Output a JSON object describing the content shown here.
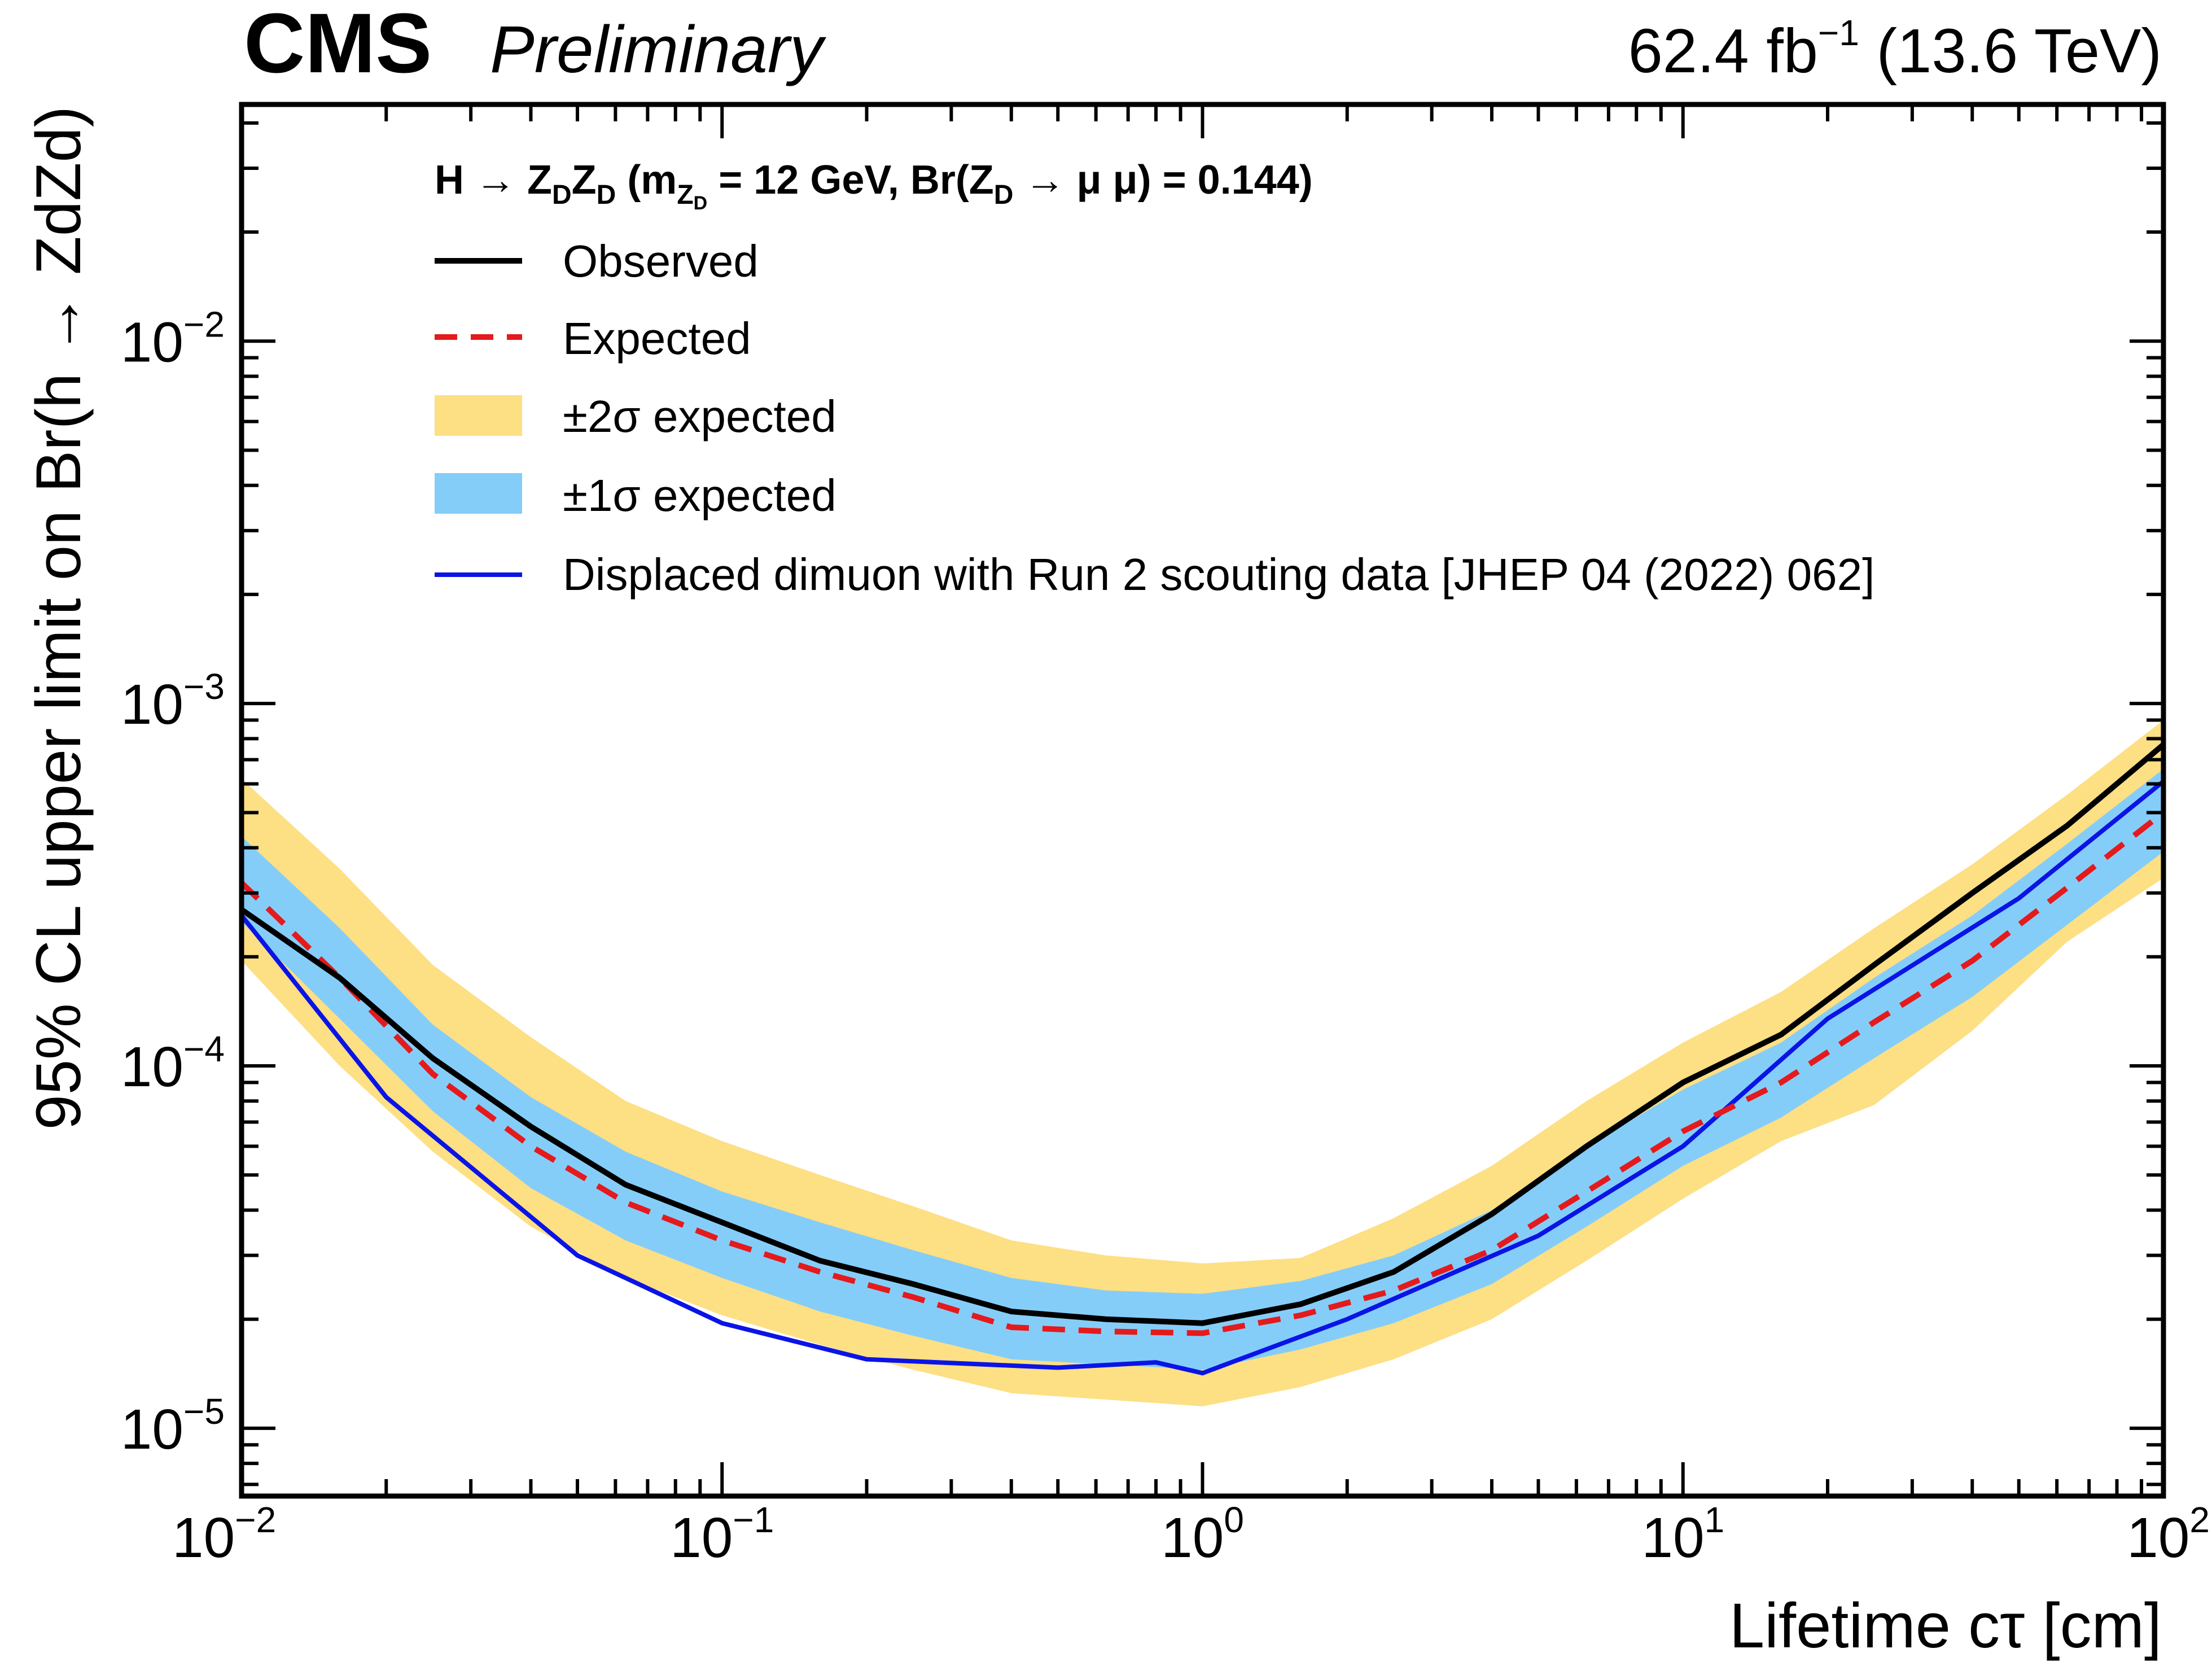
{
  "header": {
    "experiment": "CMS",
    "status": "Preliminary",
    "lumi_value": "62.4 fb",
    "lumi_exp": "−1",
    "energy": "(13.6 TeV)"
  },
  "colors": {
    "observed": "#000000",
    "expected": "#e41a1c",
    "band_2sigma": "#fddf84",
    "band_1sigma": "#85cdf9",
    "run2": "#0a14e6"
  },
  "legend": {
    "title_main": "H → Z",
    "title_sub1": "D",
    "title_mid1": "Z",
    "title_sub2": "D",
    "title_mid2": " (m",
    "title_sub3": "Z",
    "title_subsub": "D",
    "title_mid3": " =  12 GeV, Br(Z",
    "title_sub4": "D",
    "title_end": " → μ μ) = 0.144)",
    "observed": "Observed",
    "expected": "Expected",
    "band2": "±2σ expected",
    "band1": "±1σ expected",
    "run2": "Displaced dimuon with Run 2 scouting data [JHEP 04 (2022) 062]"
  },
  "chart_data": {
    "type": "line",
    "title": "H → ZDZD (mZD = 12 GeV, Br(ZD → μμ) = 0.144)",
    "xlabel": "Lifetime cτ [cm]",
    "ylabel": "95% CL upper limit on Br(h → ZdZd)",
    "xscale": "log",
    "yscale": "log",
    "xlim": [
      0.01,
      100
    ],
    "ylim": [
      6.5e-06,
      0.045
    ],
    "xticks": [
      {
        "base": "10",
        "exp": "−2",
        "value": 0.01
      },
      {
        "base": "10",
        "exp": "−1",
        "value": 0.1
      },
      {
        "base": "10",
        "exp": "0",
        "value": 1
      },
      {
        "base": "10",
        "exp": "1",
        "value": 10
      },
      {
        "base": "10",
        "exp": "2",
        "value": 100
      }
    ],
    "yticks": [
      {
        "base": "10",
        "exp": "−5",
        "value": 1e-05
      },
      {
        "base": "10",
        "exp": "−4",
        "value": 0.0001
      },
      {
        "base": "10",
        "exp": "−3",
        "value": 0.001
      },
      {
        "base": "10",
        "exp": "−2",
        "value": 0.01
      }
    ],
    "x": [
      0.01,
      0.016,
      0.025,
      0.04,
      0.063,
      0.1,
      0.16,
      0.25,
      0.4,
      0.63,
      1.0,
      1.6,
      2.5,
      4.0,
      6.3,
      10,
      16,
      25,
      40,
      63,
      100
    ],
    "series": [
      {
        "name": "Observed",
        "values": [
          0.00027,
          0.000175,
          0.000105,
          6.8e-05,
          4.7e-05,
          3.7e-05,
          2.9e-05,
          2.5e-05,
          2.1e-05,
          2e-05,
          1.95e-05,
          2.2e-05,
          2.7e-05,
          3.9e-05,
          6e-05,
          9e-05,
          0.000122,
          0.00019,
          0.0003,
          0.00046,
          0.00077
        ]
      },
      {
        "name": "Expected",
        "values": [
          0.00032,
          0.000175,
          9.5e-05,
          6e-05,
          4.2e-05,
          3.3e-05,
          2.7e-05,
          2.3e-05,
          1.9e-05,
          1.85e-05,
          1.83e-05,
          2.05e-05,
          2.4e-05,
          3.1e-05,
          4.5e-05,
          6.6e-05,
          9e-05,
          0.000132,
          0.000195,
          0.00031,
          0.0005
        ]
      },
      {
        "name": "+1σ",
        "values": [
          0.00043,
          0.00024,
          0.00013,
          8.2e-05,
          5.8e-05,
          4.5e-05,
          3.7e-05,
          3.1e-05,
          2.6e-05,
          2.4e-05,
          2.35e-05,
          2.55e-05,
          3e-05,
          4e-05,
          6e-05,
          8.6e-05,
          0.000116,
          0.000175,
          0.00026,
          0.00041,
          0.00066
        ]
      },
      {
        "name": "-1σ",
        "values": [
          0.00025,
          0.000135,
          7.5e-05,
          4.6e-05,
          3.3e-05,
          2.6e-05,
          2.1e-05,
          1.8e-05,
          1.55e-05,
          1.5e-05,
          1.45e-05,
          1.65e-05,
          1.95e-05,
          2.5e-05,
          3.6e-05,
          5.3e-05,
          7.2e-05,
          0.000105,
          0.000155,
          0.000245,
          0.00039
        ]
      },
      {
        "name": "+2σ",
        "values": [
          0.00062,
          0.00035,
          0.00019,
          0.00012,
          8e-05,
          6.2e-05,
          5e-05,
          4.1e-05,
          3.3e-05,
          3e-05,
          2.85e-05,
          2.95e-05,
          3.8e-05,
          5.3e-05,
          8e-05,
          0.000116,
          0.00016,
          0.00024,
          0.00036,
          0.00056,
          0.0009
        ]
      },
      {
        "name": "-2σ",
        "values": [
          0.000195,
          0.0001,
          5.8e-05,
          3.6e-05,
          2.6e-05,
          2.05e-05,
          1.7e-05,
          1.45e-05,
          1.25e-05,
          1.2e-05,
          1.15e-05,
          1.3e-05,
          1.55e-05,
          2e-05,
          2.9e-05,
          4.3e-05,
          6.2e-05,
          7.8e-05,
          0.000125,
          0.00022,
          0.00033
        ]
      },
      {
        "name": "Displaced dimuon with Run 2 scouting data [JHEP 04 (2022) 062]",
        "x": [
          0.01,
          0.02,
          0.05,
          0.1,
          0.2,
          0.5,
          0.8,
          1.0,
          2.0,
          5.0,
          10,
          20,
          50,
          100
        ],
        "values": [
          0.00026,
          8.2e-05,
          3e-05,
          1.95e-05,
          1.55e-05,
          1.47e-05,
          1.52e-05,
          1.42e-05,
          2e-05,
          3.4e-05,
          6e-05,
          0.000135,
          0.00029,
          0.00061
        ]
      }
    ]
  }
}
